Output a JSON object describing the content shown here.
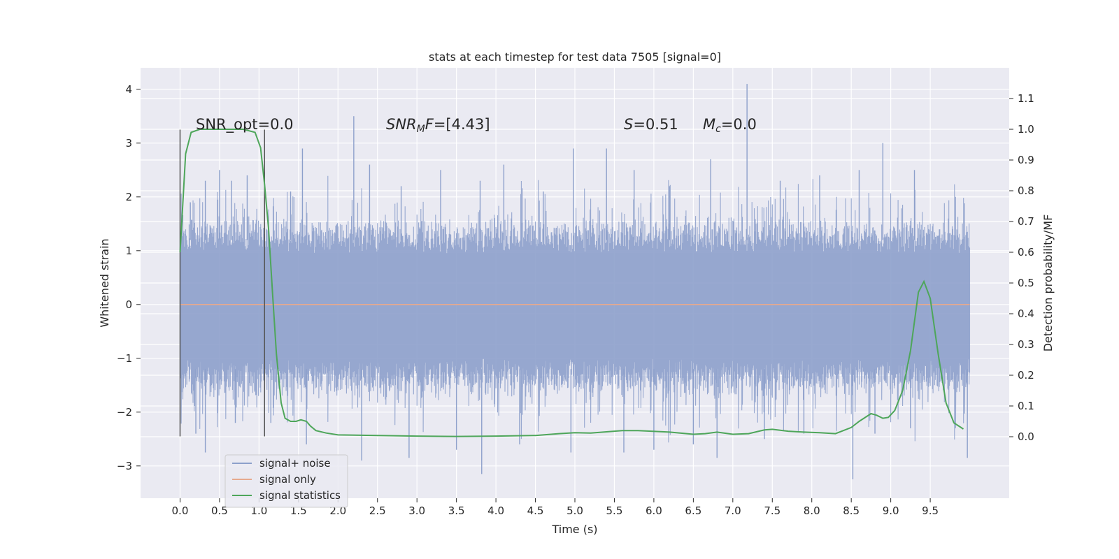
{
  "chart_data": {
    "type": "line",
    "title": "stats at each timestep for test data 7505 [signal=0]",
    "xlabel": "Time (s)",
    "ylabel_left": "Whitened strain",
    "ylabel_right": "Detection probability/MF",
    "xlim": [
      -0.5,
      10.5
    ],
    "ylim_left": [
      -3.6,
      4.4
    ],
    "ylim_right": [
      -0.2,
      1.2
    ],
    "x_ticks": [
      0.0,
      0.5,
      1.0,
      1.5,
      2.0,
      2.5,
      3.0,
      3.5,
      4.0,
      4.5,
      5.0,
      5.5,
      6.0,
      6.5,
      7.0,
      7.5,
      8.0,
      8.5,
      9.0,
      9.5
    ],
    "x_tick_labels": [
      "0.0",
      "0.5",
      "1.0",
      "1.5",
      "2.0",
      "2.5",
      "3.0",
      "3.5",
      "4.0",
      "4.5",
      "5.0",
      "5.5",
      "6.0",
      "6.5",
      "7.0",
      "7.5",
      "8.0",
      "8.5",
      "9.0",
      "9.5"
    ],
    "y_left_ticks": [
      -3,
      -2,
      -1,
      0,
      1,
      2,
      3,
      4
    ],
    "y_left_tick_labels": [
      "−3",
      "−2",
      "−1",
      "0",
      "1",
      "2",
      "3",
      "4"
    ],
    "y_right_ticks": [
      0.0,
      0.1,
      0.2,
      0.3,
      0.4,
      0.5,
      0.6,
      0.7,
      0.8,
      0.9,
      1.0,
      1.1
    ],
    "y_right_tick_labels": [
      "0.0",
      "0.1",
      "0.2",
      "0.3",
      "0.4",
      "0.5",
      "0.6",
      "0.7",
      "0.8",
      "0.9",
      "1.0",
      "1.1"
    ],
    "grid": true,
    "legend_position": "lower-left",
    "series": [
      {
        "name": "signal+ noise",
        "axis": "left",
        "color": "#8da0cb",
        "x_range": [
          0.0,
          10.0
        ],
        "spikes": [
          {
            "x": 0.13,
            "y": 1.9
          },
          {
            "x": 0.32,
            "y": 2.3
          },
          {
            "x": 0.5,
            "y": 2.5
          },
          {
            "x": 0.65,
            "y": 2.3
          },
          {
            "x": 0.85,
            "y": 2.4
          },
          {
            "x": 1.4,
            "y": 2.1
          },
          {
            "x": 1.55,
            "y": 2.9
          },
          {
            "x": 2.2,
            "y": 3.5
          },
          {
            "x": 2.4,
            "y": 2.6
          },
          {
            "x": 2.8,
            "y": 2.2
          },
          {
            "x": 3.3,
            "y": 2.5
          },
          {
            "x": 3.8,
            "y": 2.3
          },
          {
            "x": 4.1,
            "y": 2.6
          },
          {
            "x": 4.6,
            "y": 2.1
          },
          {
            "x": 4.98,
            "y": 2.9
          },
          {
            "x": 5.4,
            "y": 2.9
          },
          {
            "x": 5.75,
            "y": 2.5
          },
          {
            "x": 6.2,
            "y": 2.2
          },
          {
            "x": 6.72,
            "y": 2.7
          },
          {
            "x": 7.18,
            "y": 4.1
          },
          {
            "x": 7.6,
            "y": 2.3
          },
          {
            "x": 8.1,
            "y": 2.4
          },
          {
            "x": 8.6,
            "y": 2.5
          },
          {
            "x": 8.9,
            "y": 3.0
          },
          {
            "x": 9.3,
            "y": 2.5
          },
          {
            "x": 0.2,
            "y": -2.4
          },
          {
            "x": 0.32,
            "y": -2.75
          },
          {
            "x": 0.7,
            "y": -2.2
          },
          {
            "x": 1.15,
            "y": -2.2
          },
          {
            "x": 1.6,
            "y": -2.6
          },
          {
            "x": 2.3,
            "y": -2.9
          },
          {
            "x": 2.9,
            "y": -2.85
          },
          {
            "x": 3.5,
            "y": -2.7
          },
          {
            "x": 3.82,
            "y": -3.15
          },
          {
            "x": 4.3,
            "y": -2.6
          },
          {
            "x": 4.95,
            "y": -2.75
          },
          {
            "x": 5.62,
            "y": -2.75
          },
          {
            "x": 6.0,
            "y": -2.7
          },
          {
            "x": 6.5,
            "y": -2.6
          },
          {
            "x": 6.8,
            "y": -2.85
          },
          {
            "x": 7.4,
            "y": -2.5
          },
          {
            "x": 7.9,
            "y": -2.4
          },
          {
            "x": 8.52,
            "y": -3.25
          },
          {
            "x": 8.8,
            "y": -2.4
          },
          {
            "x": 9.25,
            "y": -2.3
          },
          {
            "x": 9.97,
            "y": -2.85
          }
        ]
      },
      {
        "name": "signal only",
        "axis": "left",
        "color": "#e6a98e",
        "x": [
          0.0,
          10.0
        ],
        "y": [
          0.0,
          0.0
        ]
      },
      {
        "name": "signal statistics",
        "axis": "right",
        "color": "#4ea65a",
        "x": [
          0.0,
          0.07,
          0.14,
          0.25,
          0.4,
          0.6,
          0.8,
          0.95,
          1.02,
          1.07,
          1.12,
          1.17,
          1.22,
          1.28,
          1.33,
          1.4,
          1.47,
          1.53,
          1.6,
          1.65,
          1.72,
          1.85,
          2.0,
          2.5,
          3.0,
          3.5,
          4.0,
          4.5,
          4.8,
          5.0,
          5.2,
          5.6,
          5.8,
          6.2,
          6.5,
          6.65,
          6.8,
          7.0,
          7.2,
          7.4,
          7.5,
          7.7,
          7.9,
          8.1,
          8.3,
          8.5,
          8.6,
          8.75,
          8.82,
          8.9,
          8.97,
          9.05,
          9.15,
          9.25,
          9.35,
          9.42,
          9.5,
          9.6,
          9.7,
          9.8,
          9.92
        ],
        "y": [
          0.6,
          0.92,
          0.99,
          1.0,
          1.0,
          1.0,
          1.0,
          0.99,
          0.94,
          0.82,
          0.68,
          0.47,
          0.27,
          0.11,
          0.06,
          0.05,
          0.05,
          0.055,
          0.05,
          0.035,
          0.02,
          0.012,
          0.006,
          0.004,
          0.002,
          0.001,
          0.002,
          0.004,
          0.01,
          0.013,
          0.012,
          0.02,
          0.02,
          0.015,
          0.008,
          0.01,
          0.015,
          0.008,
          0.01,
          0.022,
          0.024,
          0.018,
          0.015,
          0.013,
          0.01,
          0.03,
          0.05,
          0.075,
          0.07,
          0.06,
          0.063,
          0.085,
          0.15,
          0.28,
          0.47,
          0.505,
          0.45,
          0.27,
          0.11,
          0.045,
          0.025
        ]
      }
    ],
    "event_markers": {
      "color": "#555555",
      "x": [
        0.0,
        1.07
      ],
      "y_range": [
        -2.45,
        3.25
      ]
    },
    "annotations": {
      "snr_opt": "SNR_opt=0.0",
      "snr_mf_sym": "SNR",
      "snr_mf_sub": "M",
      "snr_mf_rest": "F",
      "snr_mf_value": "=[4.43]",
      "s_sym": "S",
      "s_value": "=0.51",
      "mc_sym": "M",
      "mc_sub": "c",
      "mc_value": "=0.0"
    }
  }
}
